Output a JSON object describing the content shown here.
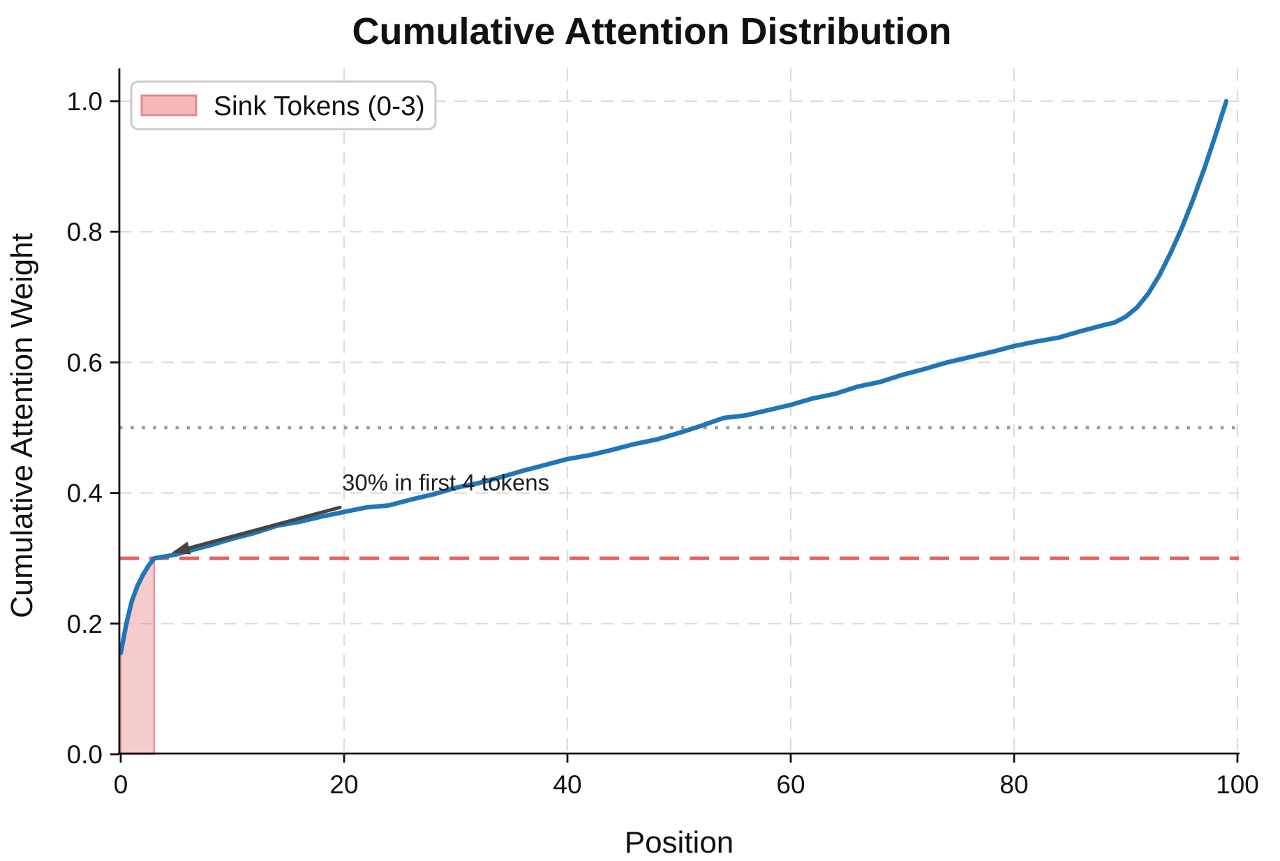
{
  "chart_data": {
    "type": "line",
    "title": "Cumulative Attention Distribution",
    "xlabel": "Position",
    "ylabel": "Cumulative Attention Weight",
    "xlim": [
      0,
      100
    ],
    "ylim": [
      0,
      1.05
    ],
    "grid": true,
    "legend_position": "upper left",
    "x_ticks": [
      0,
      20,
      40,
      60,
      80,
      100
    ],
    "y_ticks": [
      0,
      0.2,
      0.4,
      0.6,
      0.8,
      1.0
    ],
    "y_tick_labels": [
      "0.0",
      "0.2",
      "0.4",
      "0.6",
      "0.8",
      "1.0"
    ],
    "series": [
      {
        "name": "cumulative-attention-weight",
        "color": "#2176b5",
        "x": [
          0,
          0.5,
          1,
          1.5,
          2,
          2.5,
          3,
          4,
          5,
          6,
          8,
          10,
          12,
          14,
          16,
          18,
          20,
          22,
          24,
          26,
          28,
          30,
          32,
          34,
          36,
          38,
          40,
          42,
          44,
          46,
          48,
          50,
          52,
          54,
          56,
          58,
          60,
          62,
          64,
          66,
          68,
          70,
          72,
          74,
          76,
          78,
          80,
          82,
          84,
          86,
          88,
          89,
          90,
          91,
          92,
          93,
          94,
          95,
          96,
          97,
          98,
          99
        ],
        "y": [
          0.155,
          0.2,
          0.235,
          0.258,
          0.275,
          0.289,
          0.3,
          0.303,
          0.306,
          0.311,
          0.32,
          0.33,
          0.339,
          0.35,
          0.356,
          0.364,
          0.371,
          0.378,
          0.381,
          0.39,
          0.398,
          0.408,
          0.415,
          0.424,
          0.434,
          0.443,
          0.452,
          0.458,
          0.466,
          0.475,
          0.482,
          0.492,
          0.503,
          0.515,
          0.519,
          0.527,
          0.535,
          0.545,
          0.552,
          0.563,
          0.57,
          0.581,
          0.59,
          0.6,
          0.608,
          0.616,
          0.625,
          0.632,
          0.638,
          0.648,
          0.657,
          0.661,
          0.67,
          0.684,
          0.705,
          0.733,
          0.767,
          0.805,
          0.848,
          0.895,
          0.946,
          1.0
        ]
      }
    ],
    "reference_lines": [
      {
        "y": 0.5,
        "style": "dotted",
        "color": "#9b9b9b"
      },
      {
        "y": 0.3,
        "style": "dashed",
        "color": "#e06464"
      }
    ],
    "sink_region": {
      "x_start": 0,
      "x_end": 3,
      "fill_color": "#e16a6e",
      "fill_opacity": 0.35,
      "edge_color": "#db5a5f"
    },
    "annotation": {
      "text": "30% in first 4 tokens",
      "points_to": [
        4,
        0.3
      ],
      "text_at": [
        20,
        0.41
      ],
      "arrow_color": "#454545"
    },
    "legend": {
      "entries": [
        {
          "label": "Sink Tokens (0-3)",
          "fill": "#f5b9bb",
          "edge": "#e0898c"
        }
      ]
    }
  }
}
